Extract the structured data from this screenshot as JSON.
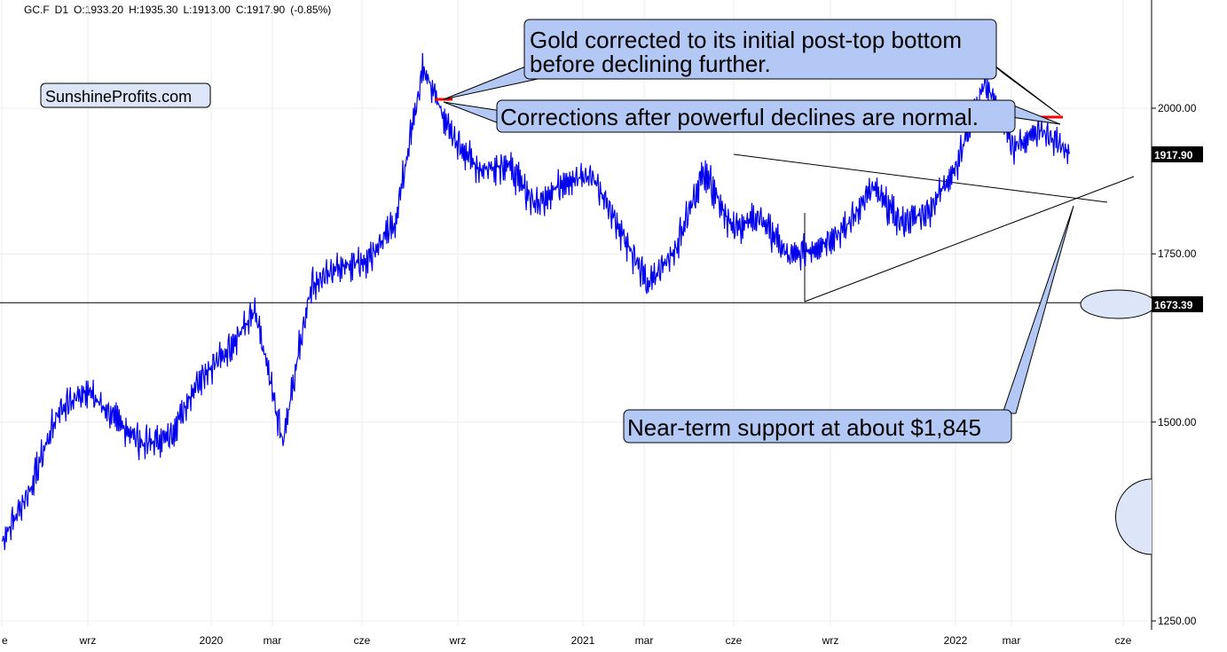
{
  "header": {
    "symbol": "GC.F",
    "interval": "D1",
    "open": "O:1933.20",
    "high": "H:1935.30",
    "low": "L:1913.00",
    "close": "C:1917.90",
    "change": "(-0.85%)"
  },
  "watermark": "SunshineProfits.com",
  "annotations": {
    "top": [
      "Gold corrected to its initial post-top bottom",
      "before declining further."
    ],
    "middle": "Corrections after powerful declines are normal.",
    "bottom": "Near-term support at about $1,845"
  },
  "colors": {
    "price_line": "#0000ee",
    "callout_fill": "#b4c8f5",
    "callout_fill_light": "#dde6f8",
    "highlight": "#ff0000",
    "grid": "#ececec"
  },
  "chart_data": {
    "type": "line",
    "scale": "log",
    "ylim": [
      1250,
      2150
    ],
    "y_ticks": [
      "2000.00",
      "1750.00",
      "1500.00",
      "1250.00"
    ],
    "x_ticks": [
      "e",
      "wrz",
      "2020",
      "mar",
      "cze",
      "wrz",
      "2021",
      "mar",
      "cze",
      "wrz",
      "2022",
      "mar",
      "cze"
    ],
    "last_price_label": "1917.90",
    "support_level_label": "1673.39",
    "support_level": 1673.39,
    "last_price": 1917.9,
    "series": [
      {
        "x": [
          "2019-06",
          "2019-07",
          "2019-08",
          "2019-09",
          "2019-10",
          "2019-11",
          "2019-12",
          "2020-01",
          "2020-02",
          "2020-03",
          "2020-03b",
          "2020-04",
          "2020-05",
          "2020-06",
          "2020-07",
          "2020-08",
          "2020-08b",
          "2020-09",
          "2020-10",
          "2020-11",
          "2020-12",
          "2021-01",
          "2021-02",
          "2021-03",
          "2021-04",
          "2021-05",
          "2021-06",
          "2021-07",
          "2021-08",
          "2021-09",
          "2021-10",
          "2021-11",
          "2021-12",
          "2022-01",
          "2022-02",
          "2022-03",
          "2022-03b",
          "2022-04",
          "2022-04b"
        ],
        "values": [
          1345,
          1410,
          1515,
          1545,
          1505,
          1470,
          1480,
          1560,
          1600,
          1660,
          1470,
          1700,
          1730,
          1740,
          1800,
          2075,
          1950,
          1890,
          1900,
          1830,
          1870,
          1880,
          1790,
          1700,
          1760,
          1890,
          1790,
          1810,
          1745,
          1760,
          1790,
          1860,
          1800,
          1820,
          1900,
          2050,
          1930,
          1960,
          1920
        ]
      }
    ]
  }
}
